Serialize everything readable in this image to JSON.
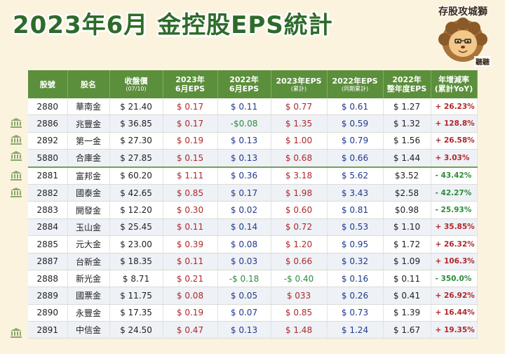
{
  "title": "2023年6月 金控股EPS統計",
  "brand": {
    "name": "存股攻城獅",
    "tag": "聽聽",
    "icon": "lion-mascot-icon"
  },
  "colors": {
    "header_bg": "#5c8f3c",
    "positive": "#b0282a",
    "neutral": "#203a8c",
    "negative": "#2e8b3a",
    "background": "#fbf3de"
  },
  "headers": [
    {
      "l1": "股號",
      "l2": ""
    },
    {
      "l1": "股名",
      "l2": ""
    },
    {
      "l1": "收盤價",
      "l2": "(07/10)"
    },
    {
      "l1": "2023年",
      "l2": "6月EPS"
    },
    {
      "l1": "2022年",
      "l2": "6月EPS"
    },
    {
      "l1": "2023年EPS",
      "l2": "(累計)"
    },
    {
      "l1": "2022年EPS",
      "l2": "(同期累計)"
    },
    {
      "l1": "2022年",
      "l2": "整年度EPS"
    },
    {
      "l1": "年增減率",
      "l2": "(累計YoY)"
    }
  ],
  "rows": [
    {
      "code": "2880",
      "name": "華南金",
      "price": "$ 21.40",
      "eps23_jun": "$ 0.17",
      "eps22_jun": "$ 0.11",
      "eps23_cum": "$ 0.77",
      "eps22_cum": "$ 0.61",
      "eps22_full": "$ 1.27",
      "yoy": "+ 26.23%",
      "bank_icon": false
    },
    {
      "code": "2886",
      "name": "兆豐金",
      "price": "$ 36.85",
      "eps23_jun": "$ 0.17",
      "eps22_jun": "-$0.08",
      "eps23_cum": "$ 1.35",
      "eps22_cum": "$ 0.59",
      "eps22_full": "$ 1.32",
      "yoy": "+ 128.8%",
      "bank_icon": true
    },
    {
      "code": "2892",
      "name": "第一金",
      "price": "$ 27.30",
      "eps23_jun": "$ 0.19",
      "eps22_jun": "$ 0.13",
      "eps23_cum": "$ 1.00",
      "eps22_cum": "$ 0.79",
      "eps22_full": "$ 1.56",
      "yoy": "+ 26.58%",
      "bank_icon": true
    },
    {
      "code": "5880",
      "name": "合庫金",
      "price": "$ 27.85",
      "eps23_jun": "$ 0.15",
      "eps22_jun": "$ 0.13",
      "eps23_cum": "$ 0.68",
      "eps22_cum": "$ 0.66",
      "eps22_full": "$ 1.44",
      "yoy": "+ 3.03%",
      "bank_icon": true
    },
    {
      "code": "2881",
      "name": "富邦金",
      "price": "$ 60.20",
      "eps23_jun": "$ 1.11",
      "eps22_jun": "$ 0.36",
      "eps23_cum": "$ 3.18",
      "eps22_cum": "$ 5.62",
      "eps22_full": "$3.52",
      "yoy": "- 43.42%",
      "bank_icon": true
    },
    {
      "code": "2882",
      "name": "國泰金",
      "price": "$ 42.65",
      "eps23_jun": "$ 0.85",
      "eps22_jun": "$ 0.17",
      "eps23_cum": "$ 1.98",
      "eps22_cum": "$ 3.43",
      "eps22_full": "$2.58",
      "yoy": "- 42.27%",
      "bank_icon": true
    },
    {
      "code": "2883",
      "name": "開發金",
      "price": "$ 12.20",
      "eps23_jun": "$ 0.30",
      "eps22_jun": "$ 0.02",
      "eps23_cum": "$ 0.60",
      "eps22_cum": "$ 0.81",
      "eps22_full": "$0.98",
      "yoy": "- 25.93%",
      "bank_icon": false
    },
    {
      "code": "2884",
      "name": "玉山金",
      "price": "$ 25.45",
      "eps23_jun": "$ 0.11",
      "eps22_jun": "$ 0.14",
      "eps23_cum": "$ 0.72",
      "eps22_cum": "$ 0.53",
      "eps22_full": "$ 1.10",
      "yoy": "+ 35.85%",
      "bank_icon": false
    },
    {
      "code": "2885",
      "name": "元大金",
      "price": "$ 23.00",
      "eps23_jun": "$ 0.39",
      "eps22_jun": "$ 0.08",
      "eps23_cum": "$ 1.20",
      "eps22_cum": "$ 0.95",
      "eps22_full": "$ 1.72",
      "yoy": "+ 26.32%",
      "bank_icon": false
    },
    {
      "code": "2887",
      "name": "台新金",
      "price": "$ 18.35",
      "eps23_jun": "$ 0.11",
      "eps22_jun": "$ 0.03",
      "eps23_cum": "$ 0.66",
      "eps22_cum": "$ 0.32",
      "eps22_full": "$ 1.09",
      "yoy": "+ 106.3%",
      "bank_icon": false
    },
    {
      "code": "2888",
      "name": "新光金",
      "price": "$ 8.71",
      "eps23_jun": "$ 0.21",
      "eps22_jun": "-$ 0.18",
      "eps23_cum": "-$ 0.40",
      "eps22_cum": "$ 0.16",
      "eps22_full": "$ 0.11",
      "yoy": "- 350.0%",
      "bank_icon": false
    },
    {
      "code": "2889",
      "name": "國票金",
      "price": "$ 11.75",
      "eps23_jun": "$ 0.08",
      "eps22_jun": "$ 0.05",
      "eps23_cum": "$ 033",
      "eps22_cum": "$ 0.26",
      "eps22_full": "$ 0.41",
      "yoy": "+ 26.92%",
      "bank_icon": false
    },
    {
      "code": "2890",
      "name": "永豐金",
      "price": "$ 17.35",
      "eps23_jun": "$ 0.19",
      "eps22_jun": "$ 0.07",
      "eps23_cum": "$ 0.85",
      "eps22_cum": "$ 0.73",
      "eps22_full": "$ 1.39",
      "yoy": "+ 16.44%",
      "bank_icon": false
    },
    {
      "code": "2891",
      "name": "中信金",
      "price": "$ 24.50",
      "eps23_jun": "$ 0.47",
      "eps22_jun": "$ 0.13",
      "eps23_cum": "$ 1.48",
      "eps22_cum": "$ 1.24",
      "eps22_full": "$ 1.67",
      "yoy": "+ 19.35%",
      "bank_icon": true
    }
  ]
}
